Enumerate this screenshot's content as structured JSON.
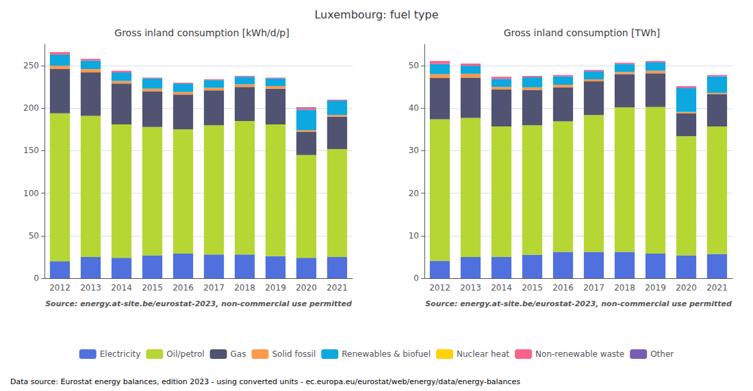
{
  "title": "Luxembourg: fuel type",
  "legend": "bottom",
  "annotations": [
    "Data source: Eurostat energy balances, edition 2023 - using converted units - ec.europa.eu/eurostat/web/energy/data/energy-balances"
  ],
  "chart_data": [
    {
      "type": "bar",
      "title": "Gross inland consumption [kWh/d/p]",
      "stacked": true,
      "grid": true,
      "categories": [
        "2012",
        "2013",
        "2014",
        "2015",
        "2016",
        "2017",
        "2018",
        "2019",
        "2020",
        "2021"
      ],
      "series": [
        {
          "name": "Electricity",
          "values": [
            20,
            25,
            24,
            27,
            29,
            28,
            28,
            26,
            24,
            25
          ]
        },
        {
          "name": "Oil/petrol",
          "values": [
            174,
            166,
            157,
            151,
            146,
            152,
            157,
            155,
            121,
            127
          ]
        },
        {
          "name": "Gas",
          "values": [
            52,
            51,
            48,
            42,
            41,
            41,
            40,
            42,
            27,
            38
          ]
        },
        {
          "name": "Solid fossil",
          "values": [
            4,
            4,
            3,
            3,
            3,
            3,
            3,
            3,
            2,
            2
          ]
        },
        {
          "name": "Renewables & biofuel",
          "values": [
            13,
            10,
            10,
            12,
            10,
            9,
            9,
            9,
            24,
            17
          ]
        },
        {
          "name": "Nuclear heat",
          "values": [
            0,
            0,
            0,
            0,
            0,
            0,
            0,
            0,
            0,
            0
          ]
        },
        {
          "name": "Non-renewable waste",
          "values": [
            3,
            2,
            2,
            1,
            1,
            1,
            1,
            1,
            2,
            1
          ]
        },
        {
          "name": "Other",
          "values": [
            0,
            0,
            0,
            0,
            0,
            0,
            0,
            0,
            1,
            0
          ]
        }
      ],
      "ylim": [
        0,
        275
      ],
      "yticks": [
        0,
        50,
        100,
        150,
        200,
        250
      ],
      "annotations": [
        "Source: energy.at-site.be/eurostat-2023, non-commercial use permitted"
      ]
    },
    {
      "type": "bar",
      "title": "Gross inland consumption [TWh]",
      "stacked": true,
      "grid": true,
      "categories": [
        "2012",
        "2013",
        "2014",
        "2015",
        "2016",
        "2017",
        "2018",
        "2019",
        "2020",
        "2021"
      ],
      "series": [
        {
          "name": "Electricity",
          "values": [
            4.1,
            5.0,
            5.0,
            5.5,
            6.2,
            6.2,
            6.2,
            5.8,
            5.4,
            5.7
          ]
        },
        {
          "name": "Oil/petrol",
          "values": [
            33.3,
            32.7,
            30.7,
            30.5,
            30.7,
            32.2,
            34.0,
            34.5,
            28.0,
            30.0
          ]
        },
        {
          "name": "Gas",
          "values": [
            9.7,
            9.5,
            8.7,
            8.3,
            8.0,
            7.9,
            7.8,
            7.9,
            5.4,
            7.6
          ]
        },
        {
          "name": "Solid fossil",
          "values": [
            0.9,
            0.9,
            0.6,
            0.6,
            0.6,
            0.5,
            0.5,
            0.6,
            0.3,
            0.3
          ]
        },
        {
          "name": "Renewables & biofuel",
          "values": [
            2.4,
            1.9,
            1.9,
            2.4,
            2.0,
            1.9,
            1.9,
            2.0,
            5.6,
            3.9
          ]
        },
        {
          "name": "Nuclear heat",
          "values": [
            0,
            0,
            0,
            0,
            0,
            0,
            0,
            0,
            0,
            0
          ]
        },
        {
          "name": "Non-renewable waste",
          "values": [
            0.7,
            0.5,
            0.5,
            0.3,
            0.3,
            0.3,
            0.3,
            0.3,
            0.4,
            0.3
          ]
        },
        {
          "name": "Other",
          "values": [
            0,
            0,
            0,
            0,
            0,
            0,
            0,
            0,
            0.1,
            0
          ]
        }
      ],
      "ylim": [
        0,
        55
      ],
      "yticks": [
        0,
        10,
        20,
        30,
        40,
        50
      ],
      "annotations": [
        "Source: energy.at-site.be/eurostat-2023, non-commercial use permitted"
      ]
    }
  ]
}
